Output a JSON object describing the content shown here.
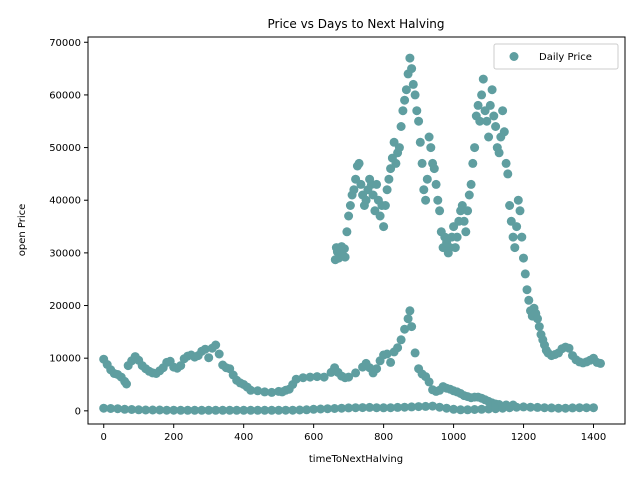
{
  "chart_data": {
    "type": "scatter",
    "title": "Price vs Days to Next Halving",
    "xlabel": "timeToNextHalving",
    "ylabel": "open Price",
    "xlim": [
      -45,
      1490
    ],
    "ylim": [
      -2500,
      71000
    ],
    "xticks": [
      0,
      200,
      400,
      600,
      800,
      1000,
      1200,
      1400
    ],
    "yticks": [
      0,
      10000,
      20000,
      30000,
      40000,
      50000,
      60000,
      70000
    ],
    "grid": false,
    "legend_position": "upper right",
    "series": [
      {
        "name": "Daily Price",
        "color": "#5f9ea0",
        "marker": "circle",
        "points": [
          [
            0,
            9800
          ],
          [
            10,
            8800
          ],
          [
            20,
            7800
          ],
          [
            30,
            7100
          ],
          [
            40,
            6900
          ],
          [
            50,
            6400
          ],
          [
            60,
            5600
          ],
          [
            65,
            5100
          ],
          [
            70,
            8600
          ],
          [
            80,
            9500
          ],
          [
            90,
            10300
          ],
          [
            100,
            9600
          ],
          [
            110,
            8600
          ],
          [
            120,
            8000
          ],
          [
            130,
            7500
          ],
          [
            140,
            7200
          ],
          [
            150,
            7100
          ],
          [
            160,
            7600
          ],
          [
            170,
            8200
          ],
          [
            180,
            9200
          ],
          [
            190,
            9400
          ],
          [
            200,
            8300
          ],
          [
            210,
            8100
          ],
          [
            220,
            8600
          ],
          [
            230,
            9900
          ],
          [
            240,
            10400
          ],
          [
            250,
            10600
          ],
          [
            260,
            10200
          ],
          [
            270,
            10500
          ],
          [
            280,
            11300
          ],
          [
            290,
            11700
          ],
          [
            300,
            10100
          ],
          [
            310,
            11900
          ],
          [
            320,
            12500
          ],
          [
            330,
            10800
          ],
          [
            340,
            8700
          ],
          [
            350,
            8200
          ],
          [
            360,
            8000
          ],
          [
            370,
            6800
          ],
          [
            380,
            5800
          ],
          [
            390,
            5300
          ],
          [
            400,
            5000
          ],
          [
            410,
            4500
          ],
          [
            420,
            3900
          ],
          [
            440,
            3800
          ],
          [
            460,
            3600
          ],
          [
            480,
            3500
          ],
          [
            500,
            3700
          ],
          [
            510,
            3600
          ],
          [
            520,
            3900
          ],
          [
            530,
            4100
          ],
          [
            540,
            5000
          ],
          [
            550,
            6000
          ],
          [
            570,
            6300
          ],
          [
            590,
            6400
          ],
          [
            610,
            6500
          ],
          [
            630,
            6400
          ],
          [
            650,
            7300
          ],
          [
            660,
            8200
          ],
          [
            670,
            7300
          ],
          [
            680,
            6600
          ],
          [
            690,
            6300
          ],
          [
            700,
            6400
          ],
          [
            720,
            7200
          ],
          [
            740,
            8300
          ],
          [
            750,
            9000
          ],
          [
            760,
            8200
          ],
          [
            770,
            7200
          ],
          [
            780,
            8000
          ],
          [
            790,
            9500
          ],
          [
            800,
            10600
          ],
          [
            810,
            10800
          ],
          [
            820,
            9200
          ],
          [
            830,
            11200
          ],
          [
            840,
            12000
          ],
          [
            850,
            13500
          ],
          [
            860,
            15500
          ],
          [
            870,
            17500
          ],
          [
            875,
            19000
          ],
          [
            880,
            16000
          ],
          [
            890,
            11000
          ],
          [
            900,
            8000
          ],
          [
            910,
            7000
          ],
          [
            920,
            6500
          ],
          [
            930,
            5500
          ],
          [
            940,
            4000
          ],
          [
            950,
            3700
          ],
          [
            960,
            3900
          ],
          [
            970,
            4600
          ],
          [
            980,
            4300
          ],
          [
            990,
            4100
          ],
          [
            1000,
            3800
          ],
          [
            1010,
            3600
          ],
          [
            1020,
            3300
          ],
          [
            1030,
            2900
          ],
          [
            1040,
            2700
          ],
          [
            1050,
            2500
          ],
          [
            1060,
            2600
          ],
          [
            1070,
            2600
          ],
          [
            1080,
            2400
          ],
          [
            1090,
            2100
          ],
          [
            1100,
            1800
          ],
          [
            1110,
            1500
          ],
          [
            1120,
            1300
          ],
          [
            1130,
            1200
          ],
          [
            1150,
            1100
          ],
          [
            1170,
            1100
          ],
          [
            662,
            28700
          ],
          [
            665,
            31000
          ],
          [
            668,
            30200
          ],
          [
            672,
            29000
          ],
          [
            676,
            30500
          ],
          [
            680,
            31200
          ],
          [
            684,
            29500
          ],
          [
            688,
            30800
          ],
          [
            690,
            29200
          ],
          [
            695,
            34000
          ],
          [
            700,
            37000
          ],
          [
            705,
            39000
          ],
          [
            710,
            41000
          ],
          [
            715,
            42000
          ],
          [
            720,
            44000
          ],
          [
            725,
            46500
          ],
          [
            730,
            47000
          ],
          [
            735,
            43000
          ],
          [
            740,
            41000
          ],
          [
            745,
            39000
          ],
          [
            750,
            40000
          ],
          [
            755,
            42000
          ],
          [
            760,
            44000
          ],
          [
            765,
            43000
          ],
          [
            770,
            41000
          ],
          [
            775,
            38000
          ],
          [
            780,
            43000
          ],
          [
            785,
            40000
          ],
          [
            790,
            37000
          ],
          [
            795,
            39000
          ],
          [
            800,
            35000
          ],
          [
            805,
            39000
          ],
          [
            810,
            42000
          ],
          [
            815,
            44000
          ],
          [
            820,
            46000
          ],
          [
            825,
            48000
          ],
          [
            830,
            51000
          ],
          [
            835,
            47000
          ],
          [
            840,
            49000
          ],
          [
            845,
            50000
          ],
          [
            850,
            54000
          ],
          [
            855,
            57000
          ],
          [
            860,
            59000
          ],
          [
            865,
            61000
          ],
          [
            870,
            64000
          ],
          [
            875,
            67000
          ],
          [
            880,
            65000
          ],
          [
            885,
            62000
          ],
          [
            890,
            60000
          ],
          [
            895,
            57000
          ],
          [
            900,
            55000
          ],
          [
            905,
            51000
          ],
          [
            910,
            47000
          ],
          [
            915,
            42000
          ],
          [
            920,
            40000
          ],
          [
            925,
            44000
          ],
          [
            930,
            52000
          ],
          [
            935,
            50000
          ],
          [
            940,
            47000
          ],
          [
            945,
            46000
          ],
          [
            950,
            43000
          ],
          [
            955,
            40000
          ],
          [
            960,
            38000
          ],
          [
            965,
            34000
          ],
          [
            970,
            31000
          ],
          [
            975,
            33000
          ],
          [
            980,
            32000
          ],
          [
            985,
            30000
          ],
          [
            990,
            31000
          ],
          [
            995,
            33000
          ],
          [
            1000,
            35000
          ],
          [
            1005,
            31000
          ],
          [
            1010,
            33000
          ],
          [
            1015,
            36000
          ],
          [
            1020,
            38000
          ],
          [
            1025,
            39000
          ],
          [
            1030,
            36000
          ],
          [
            1035,
            34000
          ],
          [
            1040,
            38000
          ],
          [
            1045,
            41000
          ],
          [
            1050,
            43000
          ],
          [
            1055,
            47000
          ],
          [
            1060,
            50000
          ],
          [
            1065,
            56000
          ],
          [
            1070,
            58000
          ],
          [
            1075,
            55000
          ],
          [
            1080,
            60000
          ],
          [
            1085,
            63000
          ],
          [
            1090,
            57000
          ],
          [
            1095,
            55000
          ],
          [
            1100,
            52000
          ],
          [
            1105,
            58000
          ],
          [
            1110,
            61000
          ],
          [
            1115,
            56000
          ],
          [
            1120,
            54000
          ],
          [
            1125,
            50000
          ],
          [
            1130,
            49000
          ],
          [
            1135,
            52000
          ],
          [
            1140,
            57000
          ],
          [
            1145,
            53000
          ],
          [
            1150,
            47000
          ],
          [
            1155,
            45000
          ],
          [
            1160,
            39000
          ],
          [
            1165,
            36000
          ],
          [
            1170,
            33000
          ],
          [
            1175,
            31000
          ],
          [
            1180,
            35000
          ],
          [
            1185,
            40000
          ],
          [
            1190,
            38000
          ],
          [
            1195,
            33000
          ],
          [
            1200,
            29000
          ],
          [
            1205,
            26000
          ],
          [
            1210,
            23000
          ],
          [
            1215,
            21000
          ],
          [
            1220,
            19000
          ],
          [
            1225,
            18000
          ],
          [
            1230,
            19500
          ],
          [
            1235,
            18500
          ],
          [
            1240,
            17500
          ],
          [
            1245,
            16000
          ],
          [
            1250,
            14500
          ],
          [
            1255,
            13500
          ],
          [
            1260,
            12500
          ],
          [
            1265,
            11500
          ],
          [
            1270,
            11000
          ],
          [
            1280,
            10500
          ],
          [
            1290,
            10700
          ],
          [
            1300,
            11000
          ],
          [
            1310,
            11800
          ],
          [
            1320,
            12100
          ],
          [
            1330,
            11900
          ],
          [
            1340,
            10500
          ],
          [
            1350,
            9700
          ],
          [
            1360,
            9300
          ],
          [
            1370,
            9100
          ],
          [
            1380,
            9300
          ],
          [
            1390,
            9600
          ],
          [
            1400,
            10000
          ],
          [
            1410,
            9200
          ],
          [
            1420,
            9000
          ],
          [
            0,
            500
          ],
          [
            20,
            450
          ],
          [
            40,
            400
          ],
          [
            60,
            300
          ],
          [
            80,
            250
          ],
          [
            100,
            200
          ],
          [
            120,
            150
          ],
          [
            140,
            150
          ],
          [
            160,
            150
          ],
          [
            180,
            130
          ],
          [
            200,
            120
          ],
          [
            220,
            110
          ],
          [
            240,
            100
          ],
          [
            260,
            100
          ],
          [
            280,
            100
          ],
          [
            300,
            100
          ],
          [
            320,
            100
          ],
          [
            340,
            100
          ],
          [
            360,
            100
          ],
          [
            380,
            100
          ],
          [
            400,
            100
          ],
          [
            420,
            100
          ],
          [
            440,
            110
          ],
          [
            460,
            110
          ],
          [
            480,
            110
          ],
          [
            500,
            110
          ],
          [
            520,
            120
          ],
          [
            540,
            120
          ],
          [
            560,
            150
          ],
          [
            580,
            200
          ],
          [
            600,
            300
          ],
          [
            620,
            350
          ],
          [
            640,
            400
          ],
          [
            660,
            450
          ],
          [
            680,
            500
          ],
          [
            700,
            550
          ],
          [
            720,
            600
          ],
          [
            740,
            620
          ],
          [
            760,
            650
          ],
          [
            780,
            600
          ],
          [
            800,
            580
          ],
          [
            820,
            600
          ],
          [
            840,
            650
          ],
          [
            860,
            700
          ],
          [
            880,
            750
          ],
          [
            900,
            800
          ],
          [
            920,
            850
          ],
          [
            940,
            900
          ],
          [
            960,
            700
          ],
          [
            980,
            500
          ],
          [
            1000,
            300
          ],
          [
            1020,
            200
          ],
          [
            1040,
            200
          ],
          [
            1060,
            250
          ],
          [
            1080,
            300
          ],
          [
            1100,
            350
          ],
          [
            1120,
            400
          ],
          [
            1140,
            500
          ],
          [
            1160,
            600
          ],
          [
            1180,
            700
          ],
          [
            1200,
            750
          ],
          [
            1220,
            700
          ],
          [
            1240,
            650
          ],
          [
            1260,
            600
          ],
          [
            1280,
            550
          ],
          [
            1300,
            500
          ],
          [
            1320,
            500
          ],
          [
            1340,
            550
          ],
          [
            1360,
            600
          ],
          [
            1380,
            600
          ],
          [
            1400,
            600
          ]
        ]
      }
    ]
  }
}
